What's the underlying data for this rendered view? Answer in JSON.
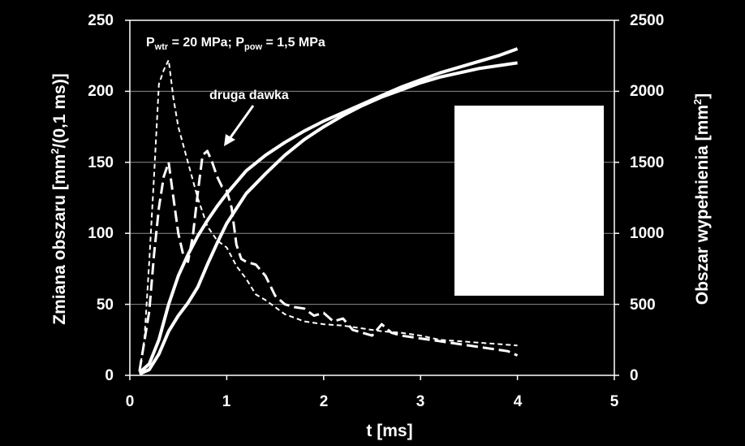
{
  "chart_data": {
    "type": "line",
    "xlabel": "t [ms]",
    "ylabel_left_main": "Zmiana obszaru [mm",
    "ylabel_left_sup": "2",
    "ylabel_left_end": "/(0,1 ms)]",
    "ylabel_right_main": "Obszar wypełnienia [mm",
    "ylabel_right_sup": "2",
    "ylabel_right_end": "]",
    "xlim": [
      0,
      5
    ],
    "ylim_left": [
      0,
      250
    ],
    "ylim_right": [
      0,
      2500
    ],
    "xticks": [
      "0",
      "1",
      "2",
      "3",
      "4",
      "5"
    ],
    "yticks_left": [
      "0",
      "50",
      "100",
      "150",
      "200",
      "250"
    ],
    "yticks_right": [
      "0",
      "500",
      "1000",
      "1500",
      "2000",
      "2500"
    ],
    "grid": "horizontal",
    "colors": {
      "background": "#000000",
      "line": "#ffffff",
      "grid": "#8c8c8c",
      "legend_box": "#ffffff"
    },
    "annotations": {
      "conditions": {
        "p1": "P",
        "s1": "wtr",
        "v1": " = 20 MPa; P",
        "s2": "pow",
        "v2": " = 1,5 MPa"
      },
      "second_dose": "druga dawka"
    },
    "legend": {
      "position": "right",
      "entries": []
    },
    "series": [
      {
        "axis": "right",
        "style": "solid",
        "x": [
          0.1,
          0.2,
          0.3,
          0.4,
          0.5,
          0.6,
          0.7,
          0.8,
          0.9,
          1.0,
          1.2,
          1.4,
          1.6,
          1.8,
          2.0,
          2.2,
          2.4,
          2.6,
          2.8,
          3.0,
          3.2,
          3.4,
          3.6,
          3.8,
          4.0
        ],
        "y": [
          20,
          80,
          250,
          500,
          700,
          850,
          980,
          1090,
          1190,
          1280,
          1440,
          1550,
          1640,
          1720,
          1790,
          1850,
          1910,
          1970,
          2030,
          2080,
          2130,
          2170,
          2210,
          2250,
          2300
        ]
      },
      {
        "axis": "right",
        "style": "solid",
        "x": [
          0.1,
          0.2,
          0.3,
          0.4,
          0.5,
          0.6,
          0.7,
          0.8,
          0.9,
          1.0,
          1.2,
          1.4,
          1.6,
          1.8,
          2.0,
          2.2,
          2.4,
          2.6,
          2.8,
          3.0,
          3.2,
          3.4,
          3.6,
          3.8,
          4.0
        ],
        "y": [
          10,
          40,
          150,
          310,
          420,
          510,
          620,
          780,
          930,
          1070,
          1280,
          1420,
          1550,
          1660,
          1750,
          1830,
          1900,
          1960,
          2010,
          2060,
          2100,
          2130,
          2160,
          2180,
          2200
        ]
      },
      {
        "axis": "left",
        "style": "short-dash",
        "x": [
          0.1,
          0.15,
          0.2,
          0.25,
          0.3,
          0.35,
          0.4,
          0.45,
          0.5,
          0.6,
          0.7,
          0.8,
          0.9,
          1.0,
          1.1,
          1.2,
          1.3,
          1.4,
          1.6,
          1.8,
          2.0,
          2.2,
          2.4,
          2.6,
          2.8,
          3.0,
          3.2,
          3.4,
          3.6,
          3.8,
          4.0
        ],
        "y": [
          3,
          25,
          80,
          140,
          205,
          215,
          222,
          195,
          175,
          150,
          125,
          105,
          95,
          90,
          77,
          68,
          57,
          53,
          43,
          38,
          36,
          35,
          33,
          31,
          30,
          28,
          25,
          24,
          23,
          22,
          21
        ]
      },
      {
        "axis": "left",
        "style": "long-dash",
        "x": [
          0.1,
          0.2,
          0.25,
          0.3,
          0.35,
          0.4,
          0.45,
          0.5,
          0.55,
          0.6,
          0.65,
          0.7,
          0.75,
          0.8,
          0.85,
          0.9,
          0.95,
          1.0,
          1.05,
          1.1,
          1.15,
          1.2,
          1.3,
          1.4,
          1.5,
          1.6,
          1.7,
          1.8,
          1.9,
          2.0,
          2.1,
          2.2,
          2.3,
          2.4,
          2.5,
          2.6,
          2.7,
          2.8,
          2.9,
          3.0,
          3.1,
          3.2,
          3.3,
          3.4,
          3.5,
          3.6,
          3.7,
          3.8,
          3.9,
          4.0
        ],
        "y": [
          3,
          45,
          85,
          118,
          140,
          150,
          125,
          100,
          85,
          80,
          98,
          128,
          155,
          158,
          150,
          140,
          133,
          130,
          118,
          92,
          82,
          80,
          78,
          70,
          56,
          50,
          48,
          47,
          42,
          44,
          38,
          40,
          32,
          30,
          28,
          36,
          30,
          28,
          27,
          26,
          25,
          24,
          23,
          22,
          21,
          20,
          19,
          18,
          17,
          14
        ]
      }
    ]
  }
}
